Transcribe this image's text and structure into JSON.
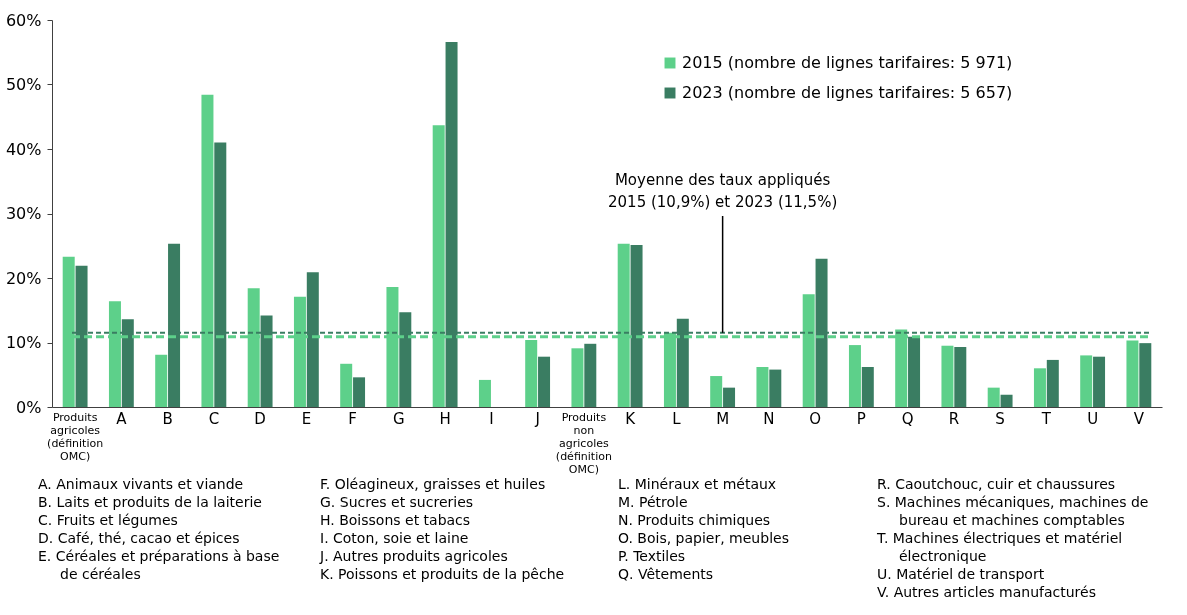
{
  "chart_data": {
    "type": "bar",
    "categories": [
      "Produits agricoles (définition OMC)",
      "A",
      "B",
      "C",
      "D",
      "E",
      "F",
      "G",
      "H",
      "I",
      "J",
      "Produits non agricoles (définition OMC)",
      "K",
      "L",
      "M",
      "N",
      "O",
      "P",
      "Q",
      "R",
      "S",
      "T",
      "U",
      "V"
    ],
    "series": [
      {
        "name": "2015 (nombre de lignes tarifaires: 5 971)",
        "color": "#5dd08a",
        "values": [
          23.3,
          16.4,
          8.1,
          48.4,
          18.4,
          17.1,
          6.7,
          18.6,
          43.7,
          4.2,
          10.4,
          9.1,
          25.3,
          11.5,
          4.8,
          6.2,
          17.5,
          9.6,
          12.0,
          9.5,
          3.0,
          6.0,
          8.0,
          10.3
        ]
      },
      {
        "name": "2023 (nombre de lignes tarifaires: 5 657)",
        "color": "#3a7d62",
        "values": [
          21.9,
          13.6,
          25.3,
          41.0,
          14.2,
          20.9,
          4.6,
          14.7,
          56.6,
          null,
          7.8,
          9.8,
          25.1,
          13.7,
          3.0,
          5.8,
          23.0,
          6.2,
          10.9,
          9.3,
          1.9,
          7.3,
          7.8,
          9.9
        ]
      }
    ],
    "ylim": [
      0,
      60
    ],
    "yticks": [
      {
        "value": 0,
        "label": "0%"
      },
      {
        "value": 10,
        "label": "10%"
      },
      {
        "value": 20,
        "label": "20%"
      },
      {
        "value": 30,
        "label": "30%"
      },
      {
        "value": 40,
        "label": "40%"
      },
      {
        "value": 50,
        "label": "50%"
      },
      {
        "value": 60,
        "label": "60%"
      }
    ],
    "grid": false,
    "legend": "top right",
    "ref_lines": [
      {
        "axis": "y",
        "value": 10.9,
        "color": "#5dd08a",
        "line_style": "dashed"
      },
      {
        "axis": "y",
        "value": 11.5,
        "color": "#3a7d62",
        "line_style": "dashed"
      }
    ],
    "annotations": [
      {
        "text": "Moyenne des taux appliqués 2015 (10,9%) et 2023 (11,5%)",
        "x": "M",
        "y": 11.5
      },
      "A. Animaux vivants et viande",
      "B. Laits et produits de la laiterie",
      "C. Fruits et légumes",
      "D. Café, thé, cacao et épices",
      "E. Céréales et préparations à base de céréales",
      "F. Oléagineux, graisses et huiles",
      "G. Sucres et sucreries",
      "H. Boissons et tabacs",
      "I. Coton, soie et laine",
      "J. Autres produits agricoles",
      "K. Poissons et produits de la pêche",
      "L. Minéraux et métaux",
      "M. Pétrole",
      "N. Produits chimiques",
      "O. Bois, papier, meubles",
      "P. Textiles",
      "Q. Vêtements",
      "R. Caoutchouc, cuir et chaussures",
      "S. Machines mécaniques, machines de bureau et machines comptables",
      "T. Machines électriques et matériel électronique",
      "U. Matériel de transport",
      "V. Autres articles manufacturés"
    ]
  }
}
